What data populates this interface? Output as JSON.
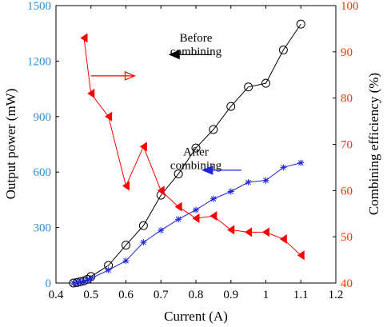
{
  "chart_data": {
    "type": "line",
    "xlabel": "Current (A)",
    "ylabel_left": "Output power (mW)",
    "ylabel_right": "Combining efficiency (%)",
    "xlim": [
      0.4,
      1.2
    ],
    "ylim_left": [
      0,
      1500
    ],
    "ylim_right": [
      40,
      100
    ],
    "x_ticks": [
      "0.4",
      "0.5",
      "0.6",
      "0.7",
      "0.8",
      "0.9",
      "1",
      "1.1",
      "1.2"
    ],
    "y_left_ticks": [
      "0",
      "300",
      "600",
      "900",
      "1200",
      "1500"
    ],
    "y_right_ticks": [
      "40",
      "50",
      "60",
      "70",
      "80",
      "90",
      "100"
    ],
    "grid": false,
    "colors": {
      "before": "#000000",
      "after": "#1f24d9",
      "efficiency": "#ff0000",
      "left_axis_label": "#2f8fd1",
      "right_axis_label": "#ff3300"
    },
    "series": [
      {
        "axis": "left",
        "marker": "circle",
        "x": [
          0.45,
          0.46,
          0.47,
          0.48,
          0.49,
          0.5,
          0.55,
          0.6,
          0.65,
          0.7,
          0.75,
          0.8,
          0.85,
          0.9,
          0.95,
          1.0,
          1.05,
          1.1
        ],
        "y": [
          0,
          3,
          7,
          12,
          20,
          35,
          95,
          205,
          310,
          475,
          590,
          730,
          830,
          955,
          1060,
          1080,
          1260,
          1400
        ]
      },
      {
        "axis": "left",
        "marker": "star",
        "x": [
          0.45,
          0.46,
          0.47,
          0.48,
          0.49,
          0.5,
          0.55,
          0.6,
          0.65,
          0.7,
          0.75,
          0.8,
          0.85,
          0.9,
          0.95,
          1.0,
          1.05,
          1.1
        ],
        "y": [
          0,
          2,
          5,
          9,
          15,
          25,
          70,
          120,
          220,
          285,
          345,
          395,
          455,
          495,
          545,
          555,
          625,
          650
        ]
      },
      {
        "axis": "right",
        "marker": "triangle-left",
        "x": [
          0.48,
          0.5,
          0.55,
          0.6,
          0.65,
          0.7,
          0.75,
          0.8,
          0.85,
          0.9,
          0.95,
          1.0,
          1.05,
          1.1
        ],
        "y": [
          93,
          81,
          76,
          61,
          69.5,
          60,
          56.5,
          54,
          54.5,
          51.5,
          51,
          51,
          49.5,
          46
        ]
      }
    ],
    "annotations": [
      {
        "text": [
          "Before",
          "combining"
        ],
        "x": 0.8,
        "y_left": 1305
      },
      {
        "text": [
          "After",
          "combining"
        ],
        "x": 0.8,
        "y_left": 690
      }
    ],
    "arrows": [
      {
        "from": [
          0.845,
          1235
        ],
        "to": [
          0.725,
          1235
        ],
        "color": "black"
      },
      {
        "from": [
          0.93,
          610
        ],
        "to": [
          0.82,
          610
        ],
        "color": "after"
      },
      {
        "from": [
          0.5,
          1120
        ],
        "to": [
          0.625,
          1120
        ],
        "color": "efficiency"
      }
    ]
  }
}
